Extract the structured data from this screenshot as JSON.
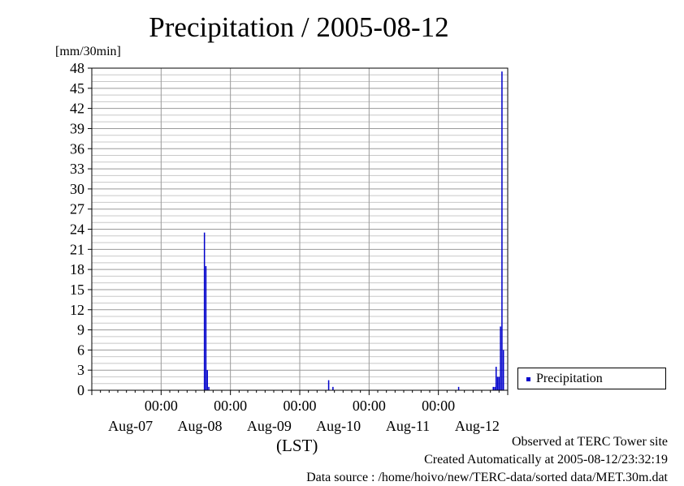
{
  "chart_data": {
    "type": "bar",
    "title": "Precipitation / 2005-08-12",
    "ylabel": "[mm/30min]",
    "xlabel": "(LST)",
    "ylim": [
      0,
      48
    ],
    "yticks": [
      "0",
      "3",
      "6",
      "9",
      "12",
      "15",
      "18",
      "21",
      "24",
      "27",
      "30",
      "33",
      "36",
      "39",
      "42",
      "45",
      "48"
    ],
    "xlim_days": [
      0,
      6
    ],
    "xticks_time": [
      {
        "day": 1,
        "label": "00:00"
      },
      {
        "day": 2,
        "label": "00:00"
      },
      {
        "day": 3,
        "label": "00:00"
      },
      {
        "day": 4,
        "label": "00:00"
      },
      {
        "day": 5,
        "label": "00:00"
      }
    ],
    "xticks_date": [
      {
        "day": 0.5,
        "label": "Aug-07"
      },
      {
        "day": 1.5,
        "label": "Aug-08"
      },
      {
        "day": 2.5,
        "label": "Aug-09"
      },
      {
        "day": 3.5,
        "label": "Aug-10"
      },
      {
        "day": 4.5,
        "label": "Aug-11"
      },
      {
        "day": 5.5,
        "label": "Aug-12"
      }
    ],
    "grid": true,
    "legend_position": "right",
    "series": [
      {
        "name": "Precipitation",
        "color": "#0000cc",
        "points": [
          {
            "x": 1.625,
            "y": 23.5
          },
          {
            "x": 1.646,
            "y": 18.5
          },
          {
            "x": 1.667,
            "y": 3.0
          },
          {
            "x": 1.688,
            "y": 0.5
          },
          {
            "x": 3.417,
            "y": 1.5
          },
          {
            "x": 3.479,
            "y": 0.5
          },
          {
            "x": 5.292,
            "y": 0.5
          },
          {
            "x": 5.792,
            "y": 0.5
          },
          {
            "x": 5.813,
            "y": 0.5
          },
          {
            "x": 5.833,
            "y": 3.5
          },
          {
            "x": 5.854,
            "y": 2.0
          },
          {
            "x": 5.875,
            "y": 2.0
          },
          {
            "x": 5.896,
            "y": 9.5
          },
          {
            "x": 5.917,
            "y": 47.5
          },
          {
            "x": 5.938,
            "y": 6.0
          }
        ]
      }
    ]
  },
  "legend": {
    "label": "Precipitation"
  },
  "footer": {
    "line1": "Observed at TERC Tower site",
    "line2": "Created Automatically at 2005-08-12/23:32:19",
    "line3": "Data source : /home/hoivo/new/TERC-data/sorted  data/MET.30m.dat"
  }
}
